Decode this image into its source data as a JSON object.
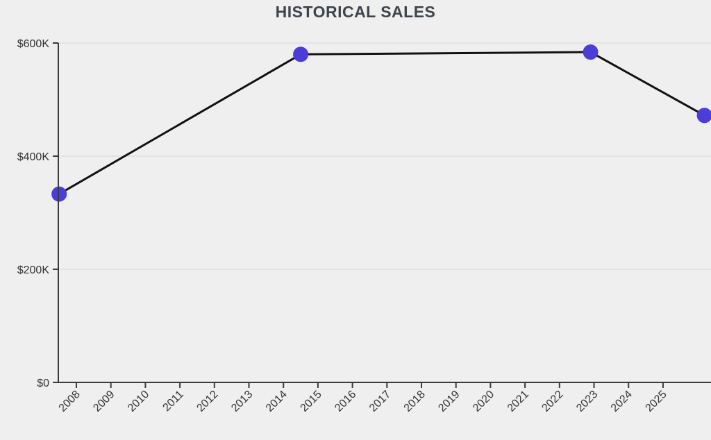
{
  "title": "HISTORICAL SALES",
  "colors": {
    "background": "#efefef",
    "grid": "#e3e3e3",
    "axis": "#3a3a3a",
    "line": "#111111",
    "point": "#4b3dd8",
    "text": "#333333",
    "title_text": "#3d444b"
  },
  "chart_data": {
    "type": "line",
    "title": "HISTORICAL SALES",
    "x": [
      2007.5,
      2014.5,
      2022.9,
      2026.2
    ],
    "values": [
      333000,
      580000,
      584000,
      472000
    ],
    "xlabel": "",
    "ylabel": "",
    "xlim": [
      2007.477,
      2026.39
    ],
    "ylim": [
      0,
      600000
    ],
    "x_ticks": [
      2008,
      2009,
      2010,
      2011,
      2012,
      2013,
      2014,
      2015,
      2016,
      2017,
      2018,
      2019,
      2020,
      2021,
      2022,
      2023,
      2024,
      2025
    ],
    "x_tick_labels": [
      "2008",
      "2009",
      "2010",
      "2011",
      "2012",
      "2013",
      "2014",
      "2015",
      "2016",
      "2017",
      "2018",
      "2019",
      "2020",
      "2021",
      "2022",
      "2023",
      "2024",
      "2025"
    ],
    "y_ticks": [
      0,
      200000,
      400000,
      600000
    ],
    "y_tick_labels": [
      "$0",
      "$200K",
      "$400K",
      "$600K"
    ],
    "grid": true,
    "legend": false
  }
}
